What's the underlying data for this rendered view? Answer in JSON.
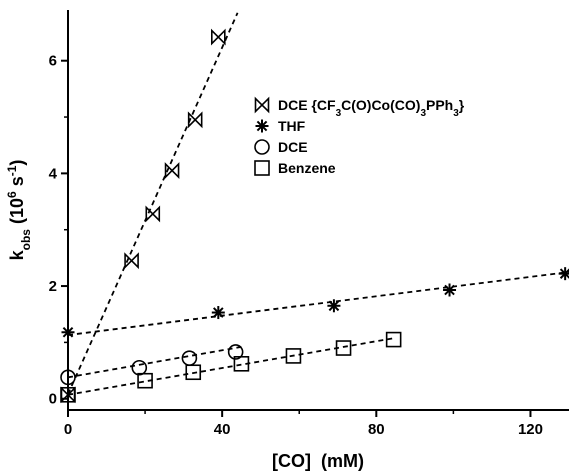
{
  "chart_data": {
    "type": "scatter",
    "title": "",
    "xlabel": "[CO]  (mM)",
    "ylabel_main": "k",
    "ylabel_sub": "obs",
    "ylabel_units_pre": "(10",
    "ylabel_units_exp1": "6",
    "ylabel_units_mid": " s",
    "ylabel_units_exp2": "-1",
    "ylabel_units_post": ")",
    "xlim": [
      0,
      130
    ],
    "ylim": [
      -0.2,
      6.9
    ],
    "xticks": [
      0,
      40,
      80,
      120
    ],
    "xtick_labels": [
      "0",
      "40",
      "80",
      "120"
    ],
    "yticks": [
      0,
      2,
      4,
      6
    ],
    "ytick_labels": [
      "0",
      "2",
      "4",
      "6"
    ],
    "grid": false,
    "legend_position": "upper-right",
    "series": [
      {
        "name": "DCE {CF3C(O)Co(CO)3PPh3}",
        "legend_parts": [
          {
            "t": "DCE {CF"
          },
          {
            "t": "3",
            "sub": true
          },
          {
            "t": "C(O)Co(CO)"
          },
          {
            "t": "3",
            "sub": true
          },
          {
            "t": "PPh"
          },
          {
            "t": "3",
            "sub": true
          },
          {
            "t": "}"
          }
        ],
        "marker": "bowtie",
        "points": [
          [
            0,
            0.07
          ],
          [
            16.5,
            2.45
          ],
          [
            22,
            3.28
          ],
          [
            27,
            4.05
          ],
          [
            33,
            4.95
          ],
          [
            39,
            6.42
          ]
        ],
        "fit": [
          [
            0,
            0.08
          ],
          [
            44,
            6.85
          ]
        ]
      },
      {
        "name": "THF",
        "legend_parts": [
          {
            "t": "THF"
          }
        ],
        "marker": "star",
        "points": [
          [
            0,
            1.18
          ],
          [
            39,
            1.53
          ],
          [
            69,
            1.65
          ],
          [
            99,
            1.93
          ],
          [
            129,
            2.22
          ]
        ],
        "fit": [
          [
            0,
            1.13
          ],
          [
            130,
            2.25
          ]
        ]
      },
      {
        "name": "DCE",
        "legend_parts": [
          {
            "t": "DCE"
          }
        ],
        "marker": "circle",
        "points": [
          [
            0,
            0.38
          ],
          [
            18.5,
            0.55
          ],
          [
            31.5,
            0.72
          ],
          [
            43.5,
            0.83
          ]
        ],
        "fit": [
          [
            0,
            0.38
          ],
          [
            45,
            0.92
          ]
        ]
      },
      {
        "name": "Benzene",
        "legend_parts": [
          {
            "t": "Benzene"
          }
        ],
        "marker": "square",
        "points": [
          [
            0,
            0.07
          ],
          [
            20,
            0.32
          ],
          [
            32.5,
            0.47
          ],
          [
            45,
            0.62
          ],
          [
            58.5,
            0.76
          ],
          [
            71.5,
            0.9
          ],
          [
            84.5,
            1.05
          ]
        ],
        "fit": [
          [
            0,
            0.07
          ],
          [
            85,
            1.08
          ]
        ]
      }
    ]
  }
}
